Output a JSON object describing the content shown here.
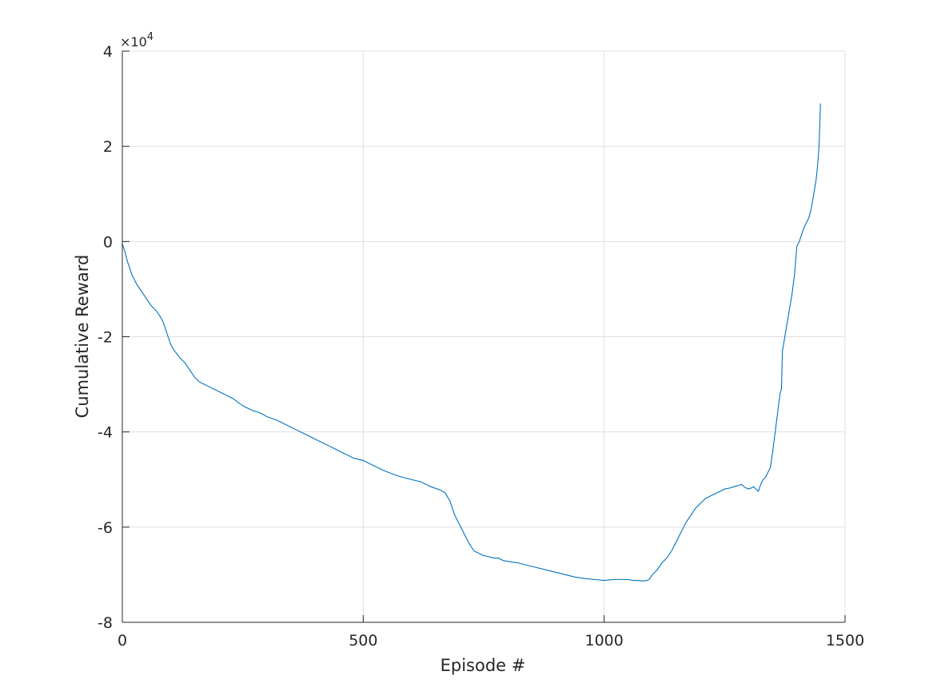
{
  "chart_data": {
    "type": "line",
    "title": "",
    "xlabel": "Episode #",
    "ylabel": "Cumulative Reward",
    "xlim": [
      0,
      1500
    ],
    "ylim": [
      -8,
      4
    ],
    "y_multiplier_text": "×10",
    "y_multiplier_exponent": "4",
    "xticks": [
      0,
      500,
      1000,
      1500
    ],
    "xtick_labels": [
      "0",
      "500",
      "1000",
      "1500"
    ],
    "yticks": [
      -8,
      -6,
      -4,
      -2,
      0,
      2,
      4
    ],
    "ytick_labels": [
      "-8",
      "-6",
      "-4",
      "-2",
      "0",
      "2",
      "4"
    ],
    "grid": true,
    "line_color": "#0072BD",
    "axis_color": "#262626",
    "grid_color": "#dfdfdf",
    "series": [
      {
        "x": [
          0,
          5,
          10,
          15,
          20,
          25,
          30,
          40,
          50,
          60,
          70,
          75,
          80,
          85,
          90,
          95,
          100,
          105,
          110,
          115,
          120,
          130,
          140,
          150,
          160,
          170,
          180,
          190,
          200,
          210,
          220,
          230,
          240,
          250,
          260,
          270,
          280,
          290,
          300,
          320,
          330,
          340,
          350,
          360,
          380,
          400,
          420,
          440,
          460,
          480,
          500,
          520,
          540,
          560,
          580,
          600,
          620,
          640,
          660,
          670,
          680,
          685,
          690,
          700,
          710,
          720,
          730,
          740,
          750,
          760,
          770,
          780,
          790,
          800,
          820,
          840,
          860,
          880,
          900,
          920,
          940,
          960,
          980,
          1000,
          1020,
          1040,
          1050,
          1060,
          1070,
          1080,
          1090,
          1095,
          1100,
          1110,
          1120,
          1130,
          1140,
          1150,
          1160,
          1170,
          1180,
          1190,
          1200,
          1210,
          1220,
          1230,
          1240,
          1250,
          1260,
          1270,
          1280,
          1285,
          1290,
          1295,
          1300,
          1305,
          1310,
          1315,
          1320,
          1325,
          1330,
          1335,
          1340,
          1345,
          1350,
          1355,
          1360,
          1365,
          1368,
          1370,
          1375,
          1380,
          1385,
          1390,
          1395,
          1400,
          1405,
          1410,
          1415,
          1420,
          1425,
          1430,
          1435,
          1440,
          1443,
          1445,
          1446,
          1447,
          1448,
          1449
        ],
        "y": [
          -0.05,
          -0.2,
          -0.4,
          -0.55,
          -0.7,
          -0.8,
          -0.9,
          -1.05,
          -1.2,
          -1.35,
          -1.45,
          -1.52,
          -1.6,
          -1.7,
          -1.85,
          -2.0,
          -2.15,
          -2.25,
          -2.32,
          -2.38,
          -2.45,
          -2.55,
          -2.7,
          -2.85,
          -2.95,
          -3.0,
          -3.05,
          -3.1,
          -3.15,
          -3.2,
          -3.25,
          -3.3,
          -3.38,
          -3.45,
          -3.5,
          -3.55,
          -3.58,
          -3.62,
          -3.68,
          -3.75,
          -3.8,
          -3.85,
          -3.9,
          -3.95,
          -4.05,
          -4.15,
          -4.25,
          -4.35,
          -4.45,
          -4.55,
          -4.6,
          -4.7,
          -4.8,
          -4.88,
          -4.95,
          -5.0,
          -5.05,
          -5.15,
          -5.22,
          -5.28,
          -5.45,
          -5.6,
          -5.75,
          -5.95,
          -6.15,
          -6.35,
          -6.5,
          -6.55,
          -6.6,
          -6.62,
          -6.65,
          -6.65,
          -6.7,
          -6.72,
          -6.75,
          -6.8,
          -6.85,
          -6.9,
          -6.95,
          -7.0,
          -7.05,
          -7.08,
          -7.1,
          -7.12,
          -7.1,
          -7.1,
          -7.1,
          -7.12,
          -7.12,
          -7.13,
          -7.12,
          -7.08,
          -7.0,
          -6.9,
          -6.75,
          -6.65,
          -6.5,
          -6.3,
          -6.1,
          -5.9,
          -5.75,
          -5.6,
          -5.5,
          -5.4,
          -5.35,
          -5.3,
          -5.25,
          -5.2,
          -5.18,
          -5.15,
          -5.12,
          -5.1,
          -5.15,
          -5.18,
          -5.2,
          -5.18,
          -5.15,
          -5.2,
          -5.25,
          -5.1,
          -5.0,
          -4.95,
          -4.85,
          -4.75,
          -4.4,
          -4.0,
          -3.6,
          -3.2,
          -3.1,
          -2.3,
          -2.0,
          -1.7,
          -1.4,
          -1.1,
          -0.7,
          -0.1,
          0.0,
          0.15,
          0.3,
          0.4,
          0.5,
          0.7,
          1.0,
          1.3,
          1.6,
          1.85,
          2.0,
          2.3,
          2.6,
          2.9
        ]
      }
    ]
  }
}
